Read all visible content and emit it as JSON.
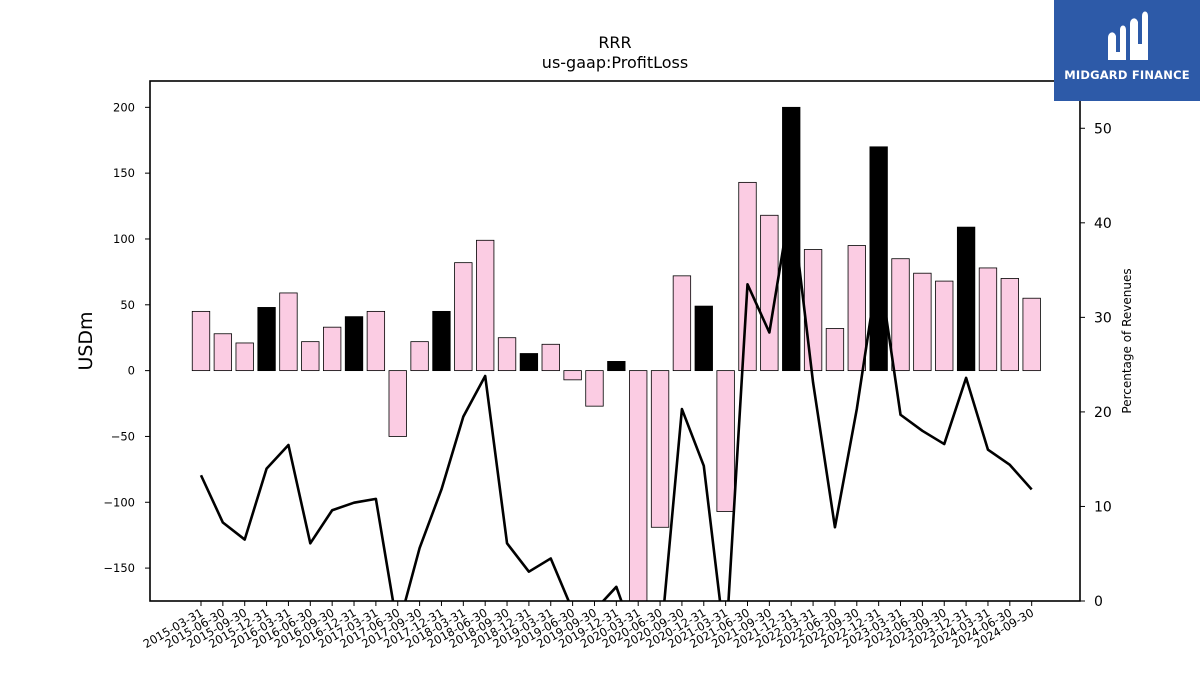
{
  "chart_data": {
    "type": "bar+line",
    "title": "RRR",
    "subtitle": "us-gaap:ProfitLoss",
    "ylabel": "USDm",
    "y2label": "Percentage of Revenues",
    "ylim": [
      -175,
      220
    ],
    "y2lim": [
      0,
      55
    ],
    "yticks": [
      -150,
      -100,
      -50,
      0,
      50,
      100,
      150,
      200
    ],
    "y2ticks": [
      0,
      10,
      20,
      30,
      40,
      50
    ],
    "categories": [
      "2015-03-31",
      "2015-06-30",
      "2015-09-30",
      "2015-12-31",
      "2016-03-31",
      "2016-06-30",
      "2016-09-30",
      "2016-12-31",
      "2017-03-31",
      "2017-06-30",
      "2017-09-30",
      "2017-12-31",
      "2018-03-31",
      "2018-06-30",
      "2018-09-30",
      "2018-12-31",
      "2019-03-31",
      "2019-06-30",
      "2019-09-30",
      "2019-12-31",
      "2020-03-31",
      "2020-06-30",
      "2020-09-30",
      "2020-12-31",
      "2021-03-31",
      "2021-06-30",
      "2021-09-30",
      "2021-12-31",
      "2022-03-31",
      "2022-06-30",
      "2022-09-30",
      "2022-12-31",
      "2023-03-31",
      "2023-06-30",
      "2023-09-30",
      "2023-12-31",
      "2024-03-31",
      "2024-06-30",
      "2024-09-30"
    ],
    "series": [
      {
        "kind": "bar",
        "values": [
          45,
          28,
          21,
          48,
          59,
          22,
          33,
          41,
          45,
          -50,
          22,
          45,
          82,
          99,
          25,
          13,
          20,
          -7,
          -27,
          7,
          -180,
          -119,
          72,
          49,
          -107,
          143,
          118,
          200,
          92,
          32,
          95,
          170,
          85,
          74,
          68,
          109,
          78,
          70,
          55
        ],
        "annual_flags": [
          false,
          false,
          false,
          true,
          false,
          false,
          false,
          true,
          false,
          false,
          false,
          true,
          false,
          false,
          false,
          true,
          false,
          false,
          false,
          true,
          false,
          false,
          false,
          true,
          false,
          false,
          false,
          true,
          false,
          false,
          false,
          true,
          false,
          false,
          false,
          true,
          false,
          false,
          false
        ]
      },
      {
        "kind": "line",
        "axis": "right",
        "values": [
          13.3,
          8.3,
          6.5,
          14.0,
          16.5,
          6.1,
          9.6,
          10.4,
          10.8,
          -3,
          5.6,
          11.8,
          19.5,
          23.8,
          6.1,
          3.1,
          4.5,
          -1,
          -1,
          1.5,
          -5,
          -5,
          20.3,
          14.3,
          -5,
          33.5,
          28.4,
          42.5,
          23.1,
          7.8,
          20.3,
          35.5,
          19.7,
          18.0,
          16.6,
          23.6,
          16.0,
          14.4,
          11.8
        ]
      }
    ],
    "colors": {
      "bar_quarter": "#fbcce3",
      "bar_annual": "#000000",
      "bar_edge": "#000000",
      "line": "#000000"
    },
    "grid": false
  },
  "logo": {
    "text": "MIDGARD FINANCE",
    "background": "#2d5aa8"
  }
}
